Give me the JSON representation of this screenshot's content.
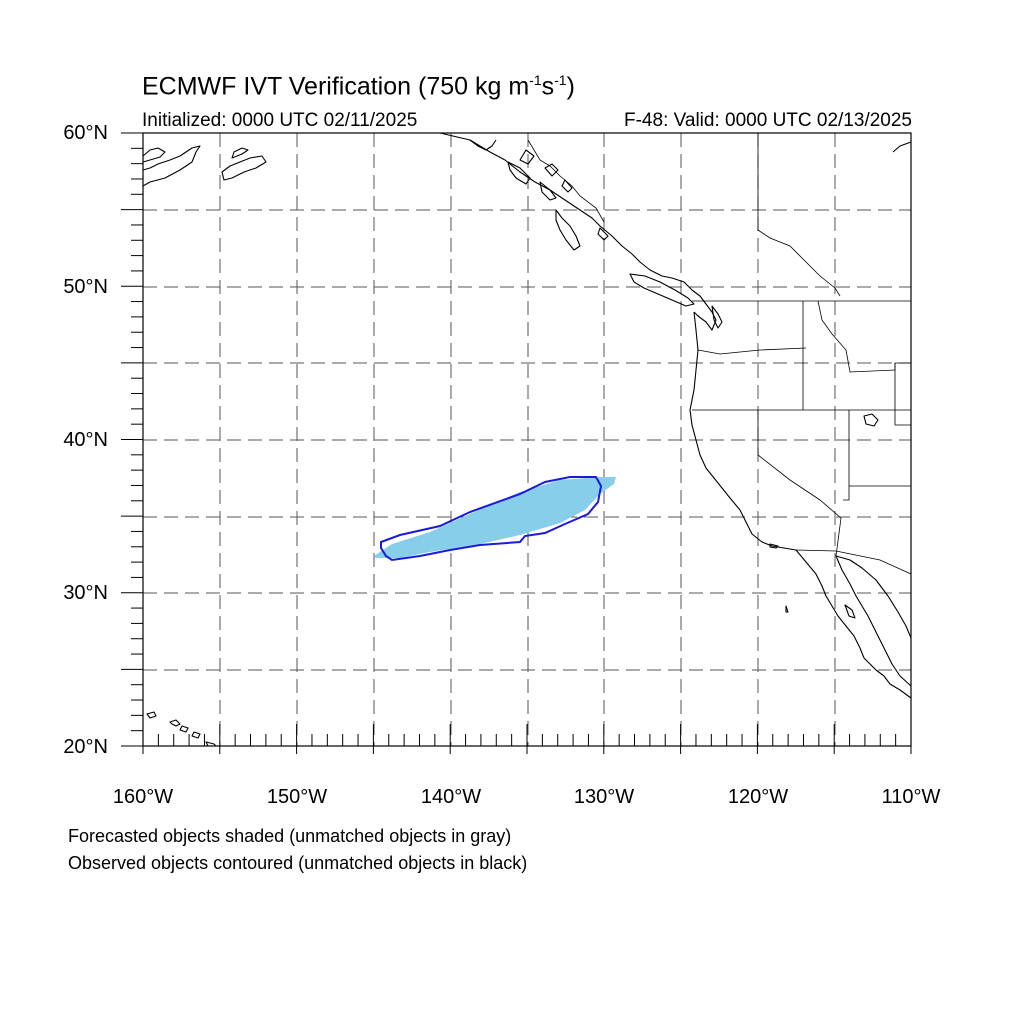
{
  "title": {
    "main": "ECMWF IVT Verification (750 kg m",
    "sup1": "-1",
    "mid": "s",
    "sup2": "-1",
    "end": ")"
  },
  "subtitle_left": "Initialized: 0000 UTC 02/11/2025",
  "subtitle_right": "F-48: Valid: 0000 UTC 02/13/2025",
  "lat_labels": [
    "60°N",
    "50°N",
    "40°N",
    "30°N",
    "20°N"
  ],
  "lon_labels": [
    "160°W",
    "150°W",
    "140°W",
    "130°W",
    "120°W",
    "110°W"
  ],
  "notes": [
    "Forecasted objects shaded (unmatched objects in gray)",
    "Observed objects contoured (unmatched objects in black)"
  ],
  "map": {
    "lon_range": [
      -160,
      -110
    ],
    "lat_range": [
      20,
      60
    ],
    "grid_spacing_deg": 5,
    "colors": {
      "forecast_fill": "#87ceeb",
      "observed_contour": "#1a1adc",
      "coastline": "#000000",
      "grid": "#555555"
    }
  }
}
